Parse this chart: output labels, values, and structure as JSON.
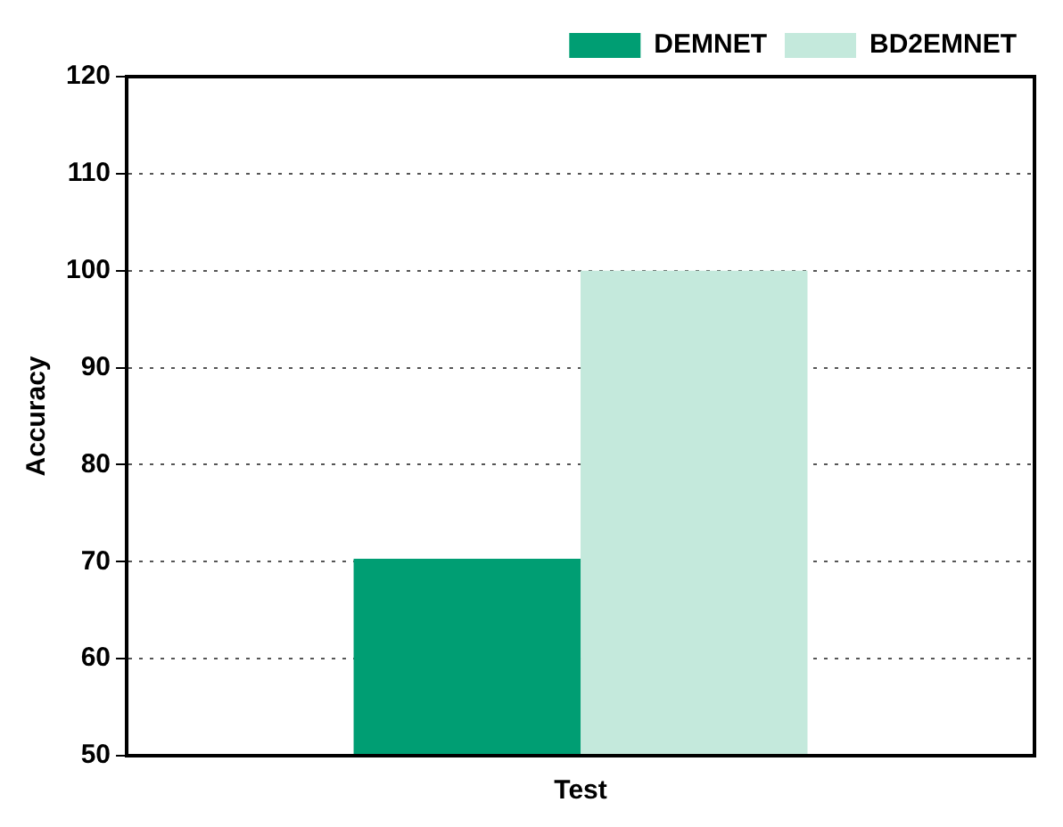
{
  "chart_data": {
    "type": "bar",
    "ylabel": "Accuracy",
    "categories": [
      "Test"
    ],
    "series": [
      {
        "name": "DEMNET",
        "color": "#009e73",
        "values": [
          70.3
        ]
      },
      {
        "name": "BD2EMNET",
        "color": "#c4e9dc",
        "values": [
          100
        ]
      }
    ],
    "ylim": [
      50,
      120
    ],
    "yticks": [
      50,
      60,
      70,
      80,
      90,
      100,
      110,
      120
    ],
    "grid": "y",
    "legend": "top right"
  }
}
